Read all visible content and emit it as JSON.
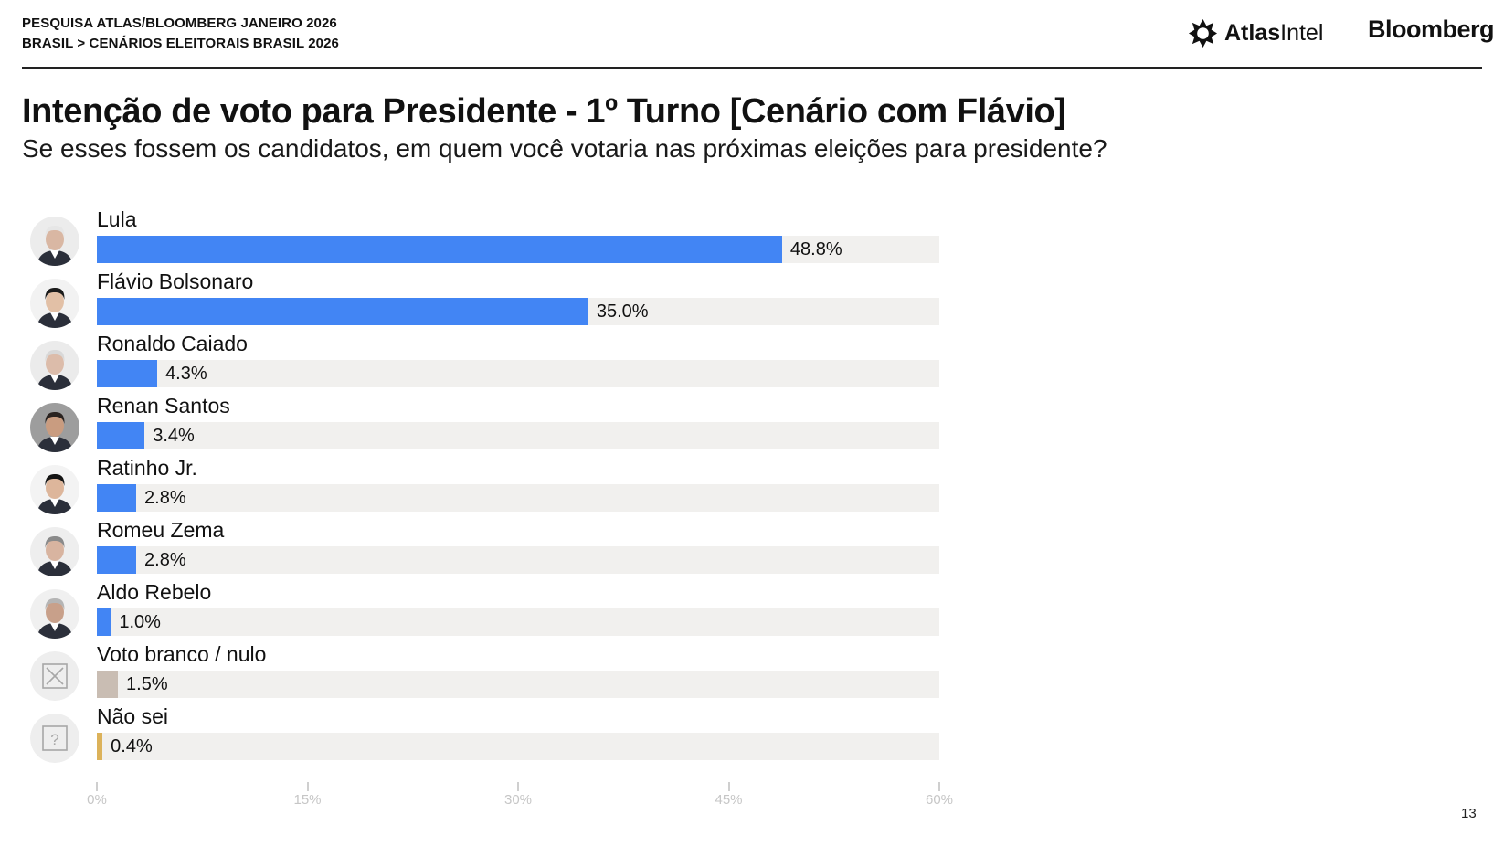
{
  "header": {
    "line1": "PESQUISA ATLAS/BLOOMBERG JANEIRO 2026",
    "line2": "BRASIL > CENÁRIOS ELEITORAIS BRASIL 2026",
    "atlas_logo_bold": "Atlas",
    "atlas_logo_regular": "Intel",
    "bloomberg_logo": "Bloomberg"
  },
  "page_number": "13",
  "colors": {
    "candidate_bar": "#4285f4",
    "blank_null_bar": "#c9bdb3",
    "dont_know_bar": "#dcb25a",
    "track": "#f1f0ee"
  },
  "chart_data": {
    "type": "bar",
    "orientation": "horizontal",
    "title": "Intenção de voto para Presidente - 1º Turno [Cenário com Flávio]",
    "subtitle": "Se esses fossem os candidatos, em quem você votaria nas próximas eleições para presidente?",
    "categories": [
      "Lula",
      "Flávio Bolsonaro",
      "Ronaldo Caiado",
      "Renan Santos",
      "Ratinho Jr.",
      "Romeu Zema",
      "Aldo Rebelo",
      "Voto branco / nulo",
      "Não sei"
    ],
    "values": [
      48.8,
      35.0,
      4.3,
      3.4,
      2.8,
      2.8,
      1.0,
      1.5,
      0.4
    ],
    "value_labels": [
      "48.8%",
      "35.0%",
      "4.3%",
      "3.4%",
      "2.8%",
      "2.8%",
      "1.0%",
      "1.5%",
      "0.4%"
    ],
    "bar_colors": [
      "#4285f4",
      "#4285f4",
      "#4285f4",
      "#4285f4",
      "#4285f4",
      "#4285f4",
      "#4285f4",
      "#c9bdb3",
      "#dcb25a"
    ],
    "icons": [
      "candidate-photo",
      "candidate-photo",
      "candidate-photo",
      "candidate-photo",
      "candidate-photo",
      "candidate-photo",
      "candidate-photo",
      "x-box-icon",
      "question-box-icon"
    ],
    "xlim": [
      0,
      60
    ],
    "xticks": [
      0,
      15,
      30,
      45,
      60
    ],
    "xtick_labels": [
      "0%",
      "15%",
      "30%",
      "45%",
      "60%"
    ],
    "grid": false,
    "legend": "none"
  }
}
